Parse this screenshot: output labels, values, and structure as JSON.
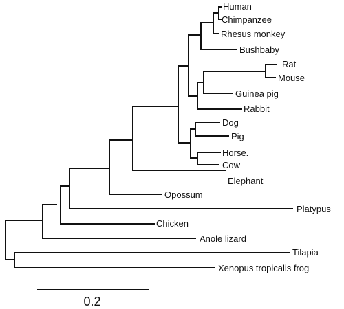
{
  "tree": {
    "leaves": [
      {
        "id": "human",
        "label": "Human"
      },
      {
        "id": "chimpanzee",
        "label": "Chimpanzee"
      },
      {
        "id": "rhesus-monkey",
        "label": "Rhesus monkey"
      },
      {
        "id": "bushbaby",
        "label": "Bushbaby"
      },
      {
        "id": "rat",
        "label": "Rat"
      },
      {
        "id": "mouse",
        "label": "Mouse"
      },
      {
        "id": "guinea-pig",
        "label": "Guinea pig"
      },
      {
        "id": "rabbit",
        "label": "Rabbit"
      },
      {
        "id": "dog",
        "label": "Dog"
      },
      {
        "id": "pig",
        "label": "Pig"
      },
      {
        "id": "horse",
        "label": "Horse."
      },
      {
        "id": "cow",
        "label": "Cow"
      },
      {
        "id": "elephant",
        "label": "Elephant"
      },
      {
        "id": "opossum",
        "label": "Opossum"
      },
      {
        "id": "platypus",
        "label": "Platypus"
      },
      {
        "id": "chicken",
        "label": "Chicken"
      },
      {
        "id": "anole-lizard",
        "label": "Anole lizard"
      },
      {
        "id": "tilapia",
        "label": "Tilapia"
      },
      {
        "id": "xenopus",
        "label": "Xenopus tropicalis frog"
      }
    ]
  },
  "scale_bar": {
    "value": 0.2,
    "label": "0.2"
  }
}
